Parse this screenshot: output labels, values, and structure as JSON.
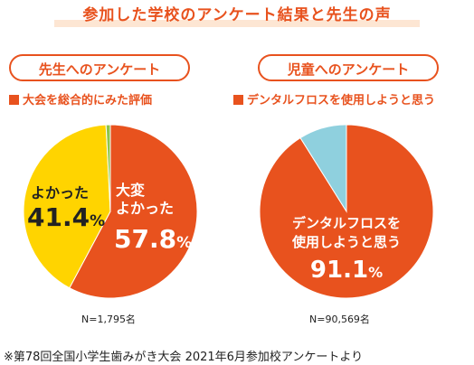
{
  "title": "参加した学校のアンケート結果と先生の声",
  "chart_data": [
    {
      "type": "pie",
      "panel_title": "先生へのアンケート",
      "subtitle": "大会を総合的にみた評価",
      "slices": [
        {
          "label_line1": "大変",
          "label_line2": "よかった",
          "value": 57.8,
          "value_text": "57.8",
          "unit": "%",
          "color": "#e8521e"
        },
        {
          "label_line1": "",
          "label_line2": "よかった",
          "value": 41.4,
          "value_text": "41.4",
          "unit": "%",
          "color": "#ffd400"
        },
        {
          "label_line1": "",
          "label_line2": "",
          "value": 0.8,
          "value_text": "",
          "unit": "",
          "color": "#8ec54a"
        }
      ],
      "n_text": "N=1,795名"
    },
    {
      "type": "pie",
      "panel_title": "児童へのアンケート",
      "subtitle": "デンタルフロスを使用しようと思う",
      "slices": [
        {
          "label_line1": "デンタルフロスを",
          "label_line2": "使用しようと思う",
          "value": 91.1,
          "value_text": "91.1",
          "unit": "%",
          "color": "#e8521e"
        },
        {
          "label_line1": "",
          "label_line2": "",
          "value": 8.9,
          "value_text": "",
          "unit": "",
          "color": "#8fd0de"
        }
      ],
      "n_text": "N=90,569名"
    }
  ],
  "footnote": "※第78回全国小学生歯みがき大会 2021年6月参加校アンケートより"
}
